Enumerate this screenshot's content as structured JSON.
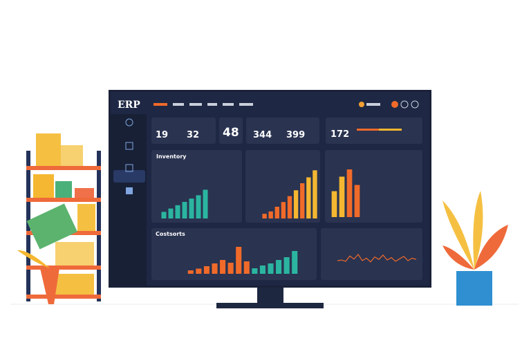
{
  "header": {
    "logo": "ERP"
  },
  "kpis": [
    19,
    32,
    48,
    344,
    399,
    172
  ],
  "panels": [
    {
      "title": "Inventory",
      "bars": [
        12,
        18,
        24,
        30,
        36,
        42,
        52
      ],
      "colors": [
        "#2bb5a0",
        "#2bb5a0",
        "#2bb5a0",
        "#2bb5a0",
        "#2bb5a0",
        "#2bb5a0",
        "#2bb5a0"
      ]
    },
    {
      "bars": [
        8,
        12,
        20,
        28,
        38,
        48,
        60,
        70,
        82
      ],
      "colors": [
        "#f06a2a",
        "#f06a2a",
        "#f06a2a",
        "#f06a2a",
        "#f06a2a",
        "#f5b731",
        "#f06a2a",
        "#f5b731",
        "#f5b731"
      ]
    },
    {
      "bars": [
        50,
        78,
        92,
        62
      ],
      "colors": [
        "#f5b731",
        "#f5b731",
        "#f06a2a",
        "#f06a2a"
      ]
    },
    {
      "title": "Costsorts",
      "bars": [
        10,
        15,
        22,
        30,
        40,
        32,
        78,
        36,
        16,
        24,
        30,
        40,
        48,
        66
      ],
      "colors": [
        "#f06a2a",
        "#f06a2a",
        "#f06a2a",
        "#f06a2a",
        "#f06a2a",
        "#f06a2a",
        "#f06a2a",
        "#f06a2a",
        "#2bb5a0",
        "#2bb5a0",
        "#2bb5a0",
        "#2bb5a0",
        "#2bb5a0",
        "#2bb5a0"
      ]
    },
    {
      "line": [
        40,
        42,
        38,
        55,
        45,
        60,
        40,
        48,
        36,
        52,
        44,
        58,
        42,
        50,
        38,
        46,
        54,
        40,
        48,
        44
      ]
    }
  ]
}
